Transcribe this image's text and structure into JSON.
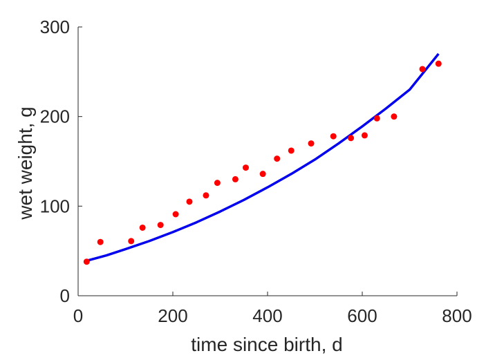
{
  "chart_data": {
    "type": "scatter",
    "title": "",
    "xlabel": "time since birth, d",
    "ylabel": "wet weight, g",
    "xlim": [
      0,
      800
    ],
    "ylim": [
      0,
      300
    ],
    "xticks": [
      0,
      200,
      400,
      600,
      800
    ],
    "yticks": [
      0,
      100,
      200,
      300
    ],
    "grid": false,
    "series": [
      {
        "type": "scatter",
        "color": "#ff0000",
        "x": [
          18,
          47,
          112,
          136,
          174,
          206,
          235,
          270,
          294,
          332,
          354,
          390,
          420,
          450,
          492,
          539,
          576,
          605,
          631,
          667,
          727,
          761
        ],
        "y": [
          38,
          60,
          61,
          76,
          79,
          91,
          105,
          112,
          126,
          130,
          143,
          136,
          153,
          162,
          170,
          178,
          176,
          179,
          198,
          200,
          253,
          259
        ]
      },
      {
        "type": "line",
        "color": "#0000ee",
        "x": [
          18,
          60,
          100,
          150,
          200,
          250,
          300,
          350,
          400,
          450,
          500,
          550,
          600,
          650,
          700,
          761
        ],
        "y": [
          39,
          45,
          52,
          61,
          71,
          82,
          94,
          107,
          121,
          136,
          152,
          170,
          189,
          209,
          230,
          270
        ]
      }
    ]
  }
}
